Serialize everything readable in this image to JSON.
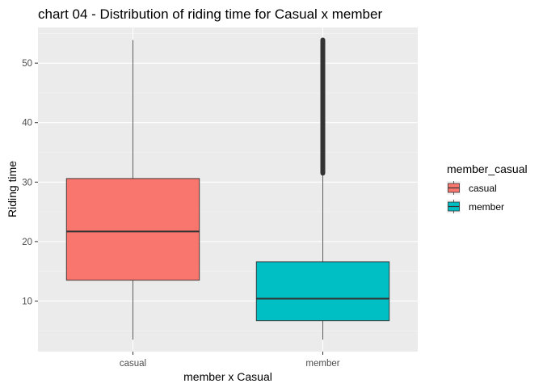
{
  "chart_data": {
    "type": "box",
    "title": "chart 04 - Distribution of riding time for Casual x member",
    "xlabel": "member x Casual",
    "ylabel": "Riding time",
    "categories": [
      "casual",
      "member"
    ],
    "ylim": [
      1.5,
      56
    ],
    "yticks": [
      10,
      20,
      30,
      40,
      50
    ],
    "grid": true,
    "legend": {
      "title": "member_casual",
      "position": "right",
      "entries": [
        {
          "label": "casual",
          "color": "#F8766D"
        },
        {
          "label": "member",
          "color": "#00BFC4"
        }
      ]
    },
    "series": [
      {
        "name": "casual",
        "color": "#F8766D",
        "min": 3.5,
        "q1": 13.5,
        "median": 21.7,
        "q3": 30.6,
        "max": 53.9,
        "outliers_range": null
      },
      {
        "name": "member",
        "color": "#00BFC4",
        "min": 3.5,
        "q1": 6.7,
        "median": 10.4,
        "q3": 16.6,
        "max": 31.5,
        "outliers_range": [
          31.5,
          53.9
        ]
      }
    ]
  }
}
